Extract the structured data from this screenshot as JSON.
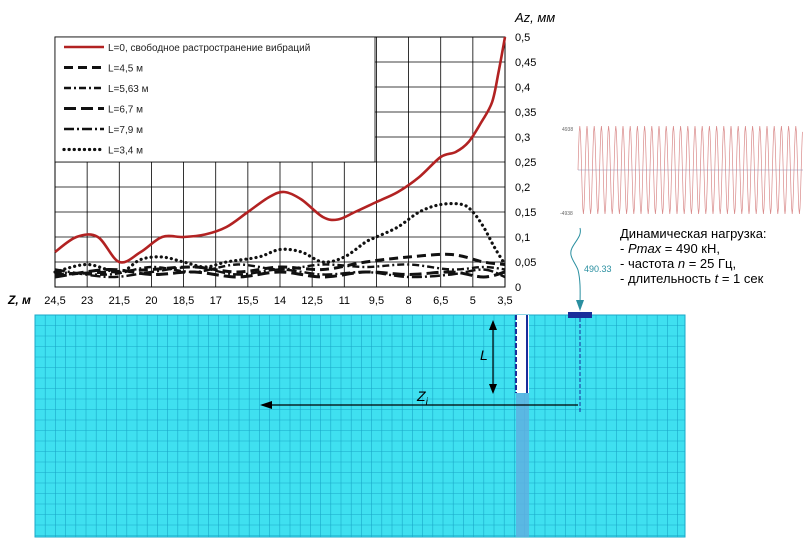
{
  "chart_data": {
    "type": "line",
    "ylabel": "Az, мм",
    "xlabel": "Z, м",
    "x_ticks": [
      "24,5",
      "23",
      "21,5",
      "20",
      "18,5",
      "17",
      "15,5",
      "14",
      "12,5",
      "11",
      "9,5",
      "8",
      "6,5",
      "5",
      "3,5"
    ],
    "y_ticks": [
      "0",
      "0,05",
      "0,1",
      "0,15",
      "0,2",
      "0,25",
      "0,3",
      "0,35",
      "0,4",
      "0,45",
      "0,5"
    ],
    "xlim": [
      24.5,
      3.5
    ],
    "ylim": [
      0,
      0.5
    ],
    "x_reversed": true,
    "grid": true,
    "legend_position": "top-left",
    "series": [
      {
        "name": "L=0, свободное растространение вибраций",
        "color": "#b22222",
        "x": [
          24.5,
          23.5,
          22.5,
          21.5,
          20.5,
          19.5,
          18.5,
          17.5,
          16.5,
          15.5,
          14.5,
          13.8,
          13.0,
          12.0,
          11.3,
          10.5,
          9.5,
          8.5,
          7.5,
          6.5,
          5.8,
          5.2,
          4.6,
          4.1,
          3.8,
          3.5
        ],
        "y": [
          0.07,
          0.1,
          0.1,
          0.05,
          0.07,
          0.1,
          0.1,
          0.105,
          0.12,
          0.15,
          0.18,
          0.19,
          0.175,
          0.14,
          0.135,
          0.15,
          0.17,
          0.19,
          0.22,
          0.26,
          0.27,
          0.29,
          0.33,
          0.37,
          0.43,
          0.5
        ]
      },
      {
        "name": "L=4,5 м",
        "color": "#111111",
        "x": [
          24.5,
          22,
          20,
          18,
          16,
          14,
          12,
          10,
          8,
          6,
          4.5,
          3.5
        ],
        "y": [
          0.025,
          0.03,
          0.035,
          0.04,
          0.03,
          0.04,
          0.035,
          0.05,
          0.06,
          0.065,
          0.05,
          0.045
        ]
      },
      {
        "name": "L=5,63 м",
        "color": "#111111",
        "x": [
          24.5,
          22,
          20,
          18,
          16,
          14,
          12,
          10,
          8,
          6,
          4.5,
          3.5
        ],
        "y": [
          0.03,
          0.025,
          0.04,
          0.03,
          0.045,
          0.035,
          0.045,
          0.04,
          0.045,
          0.035,
          0.04,
          0.035
        ]
      },
      {
        "name": "L=6,7 м",
        "color": "#111111",
        "x": [
          24.5,
          22,
          20,
          18,
          16,
          14,
          12,
          10,
          8,
          6,
          4.5,
          3.5
        ],
        "y": [
          0.02,
          0.035,
          0.025,
          0.03,
          0.02,
          0.03,
          0.02,
          0.03,
          0.025,
          0.03,
          0.02,
          0.03
        ]
      },
      {
        "name": "L=7,9 м",
        "color": "#111111",
        "x": [
          24.5,
          22,
          20,
          18,
          16,
          14,
          12,
          10,
          8,
          6,
          4.5,
          3.5
        ],
        "y": [
          0.035,
          0.02,
          0.03,
          0.04,
          0.025,
          0.035,
          0.025,
          0.03,
          0.02,
          0.025,
          0.035,
          0.02
        ]
      },
      {
        "name": "L=3,4 м",
        "color": "#111111",
        "x": [
          24.5,
          23,
          21.5,
          20.5,
          19.5,
          18.5,
          17.5,
          16.5,
          15,
          14,
          13,
          12,
          11,
          10,
          9.5,
          8.5,
          7.5,
          6.5,
          5.5,
          5,
          4.5,
          4,
          3.5
        ],
        "y": [
          0.03,
          0.045,
          0.03,
          0.055,
          0.06,
          0.05,
          0.04,
          0.05,
          0.06,
          0.075,
          0.07,
          0.05,
          0.06,
          0.09,
          0.1,
          0.12,
          0.15,
          0.165,
          0.165,
          0.15,
          0.12,
          0.08,
          0.045
        ]
      }
    ]
  },
  "annotations": {
    "load_title": "Динамическая нагрузка:",
    "pmax_label": "Pmax",
    "pmax_value": " = 490 кН,",
    "freq_prefix": "- частота ",
    "freq_var": "n",
    "freq_value": " = 25 Гц,",
    "dur_prefix": "- длительность ",
    "dur_var": "t",
    "dur_value": " = 1 сек",
    "load_value_tag": "490.33",
    "dim_L": "L",
    "dim_Z": "Z",
    "dim_Z_sub": "i",
    "signal_top": "4938",
    "signal_bottom": "-4938"
  },
  "colors": {
    "soil": "#3fe0f0",
    "soil_grid": "#1aa8c8",
    "trench": "#5fb0e0",
    "load_cap": "#1a2e9a",
    "signal": "#d98a8a",
    "tag": "#2a8fa0"
  }
}
